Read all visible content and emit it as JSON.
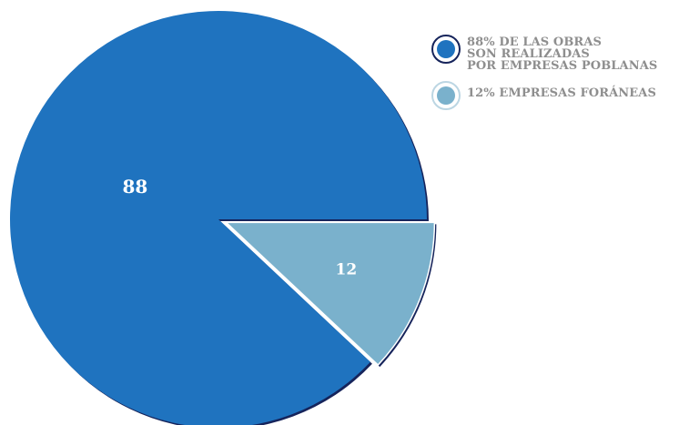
{
  "chart_data": {
    "type": "pie",
    "slices": [
      {
        "label": "88",
        "value": 88,
        "color": "#1f73bf"
      },
      {
        "label": "12",
        "value": 12,
        "color": "#7ab1cc"
      }
    ],
    "legend": [
      {
        "lines": [
          "88% DE LAS OBRAS",
          "SON REALIZADAS",
          "POR EMPRESAS POBLANAS"
        ],
        "color": "#1f73bf"
      },
      {
        "lines": [
          "12% EMPRESAS FORÁNEAS"
        ],
        "color": "#7ab1cc"
      }
    ],
    "legend_position": "top-right",
    "colors": {
      "outline": "#16245b",
      "label": "#ffffff",
      "legend_text": "#8e8e8e"
    }
  }
}
